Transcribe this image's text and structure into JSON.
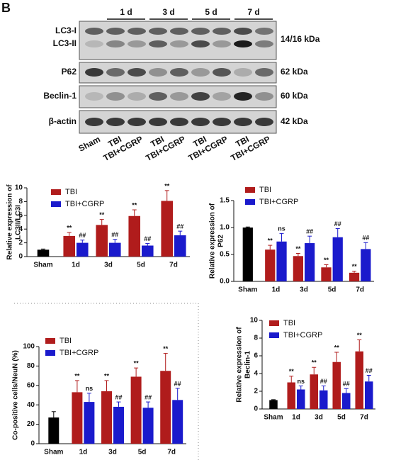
{
  "panel_label": "B",
  "blot": {
    "time_labels": [
      "1 d",
      "3 d",
      "5 d",
      "7 d"
    ],
    "row_labels": [
      "LC3-I",
      "LC3-II",
      "P62",
      "Beclin-1",
      "β-actin"
    ],
    "kda_labels": [
      "14/16 kDa",
      "62 kDa",
      "60 kDa",
      "42 kDa"
    ],
    "lanes": [
      "Sham",
      "TBI",
      "TBI+CGRP",
      "TBI",
      "TBI+CGRP",
      "TBI",
      "TBI+CGRP",
      "TBI",
      "TBI+CGRP"
    ]
  },
  "chart_data": [
    {
      "type": "bar",
      "ylabel": [
        "Relative expression of",
        "LC3II/LC3I"
      ],
      "categories": [
        "Sham",
        "1d",
        "3d",
        "5d",
        "7d"
      ],
      "control": {
        "value": 1,
        "error": 0.1,
        "color": "#000000"
      },
      "series": [
        {
          "name": "TBI",
          "color": "#b01c1c",
          "values": [
            null,
            3.0,
            4.6,
            5.9,
            8.1
          ],
          "errors": [
            null,
            0.5,
            0.8,
            0.9,
            1.5
          ],
          "annotations": [
            null,
            "**",
            "**",
            "**",
            "**"
          ]
        },
        {
          "name": "TBI+CGRP",
          "color": "#1a1acc",
          "values": [
            null,
            2.0,
            2.0,
            1.6,
            3.1
          ],
          "errors": [
            null,
            0.4,
            0.5,
            0.3,
            0.6
          ],
          "annotations": [
            null,
            "##",
            "##",
            "##",
            "##"
          ]
        }
      ],
      "ylim": [
        0,
        10
      ],
      "yticks": [
        0,
        2,
        4,
        6,
        8,
        10
      ]
    },
    {
      "type": "bar",
      "ylabel": [
        "Relative expression of",
        "P62"
      ],
      "categories": [
        "Sham",
        "1d",
        "3d",
        "5d",
        "7d"
      ],
      "control": {
        "value": 1.0,
        "error": 0.01,
        "color": "#000000"
      },
      "series": [
        {
          "name": "TBI",
          "color": "#b01c1c",
          "values": [
            null,
            0.59,
            0.47,
            0.26,
            0.16
          ],
          "errors": [
            null,
            0.08,
            0.05,
            0.05,
            0.03
          ],
          "annotations": [
            null,
            "**",
            "**",
            "**",
            "**"
          ]
        },
        {
          "name": "TBI+CGRP",
          "color": "#1a1acc",
          "values": [
            null,
            0.74,
            0.71,
            0.82,
            0.6
          ],
          "errors": [
            null,
            0.15,
            0.13,
            0.16,
            0.12
          ],
          "annotations": [
            null,
            "ns",
            "##",
            "##",
            "##"
          ]
        }
      ],
      "ylim": [
        0,
        1.5
      ],
      "yticks": [
        {
          "value": 0,
          "label": "0.0"
        },
        0.5,
        {
          "value": 1,
          "label": "1.0"
        },
        1.5
      ]
    },
    {
      "type": "bar",
      "ylabel": [
        "Co-positive cells/NeuN (%)"
      ],
      "categories": [
        "Sham",
        "1d",
        "3d",
        "5d",
        "7d"
      ],
      "control": {
        "value": 27,
        "error": 6,
        "color": "#000000"
      },
      "series": [
        {
          "name": "TBI",
          "color": "#b01c1c",
          "values": [
            null,
            53,
            54,
            69,
            75
          ],
          "errors": [
            null,
            12,
            11,
            9,
            18
          ],
          "annotations": [
            null,
            "**",
            "**",
            "**",
            "**"
          ]
        },
        {
          "name": "TBI+CGRP",
          "color": "#1a1acc",
          "values": [
            null,
            43,
            38,
            37,
            45
          ],
          "errors": [
            null,
            9,
            5,
            6,
            12
          ],
          "annotations": [
            null,
            "ns",
            "##",
            "##",
            "##"
          ]
        }
      ],
      "ylim": [
        0,
        100
      ],
      "yticks": [
        0,
        20,
        40,
        60,
        80,
        100
      ]
    },
    {
      "type": "bar",
      "ylabel": [
        "Relative expression of",
        "Beclin-1"
      ],
      "categories": [
        "Sham",
        "1d",
        "3d",
        "5d",
        "7d"
      ],
      "control": {
        "value": 1,
        "error": 0.05,
        "color": "#000000"
      },
      "series": [
        {
          "name": "TBI",
          "color": "#b01c1c",
          "values": [
            null,
            3.0,
            3.9,
            5.3,
            6.5
          ],
          "errors": [
            null,
            0.7,
            0.8,
            1.1,
            1.3
          ],
          "annotations": [
            null,
            "**",
            "**",
            "**",
            "**"
          ]
        },
        {
          "name": "TBI+CGRP",
          "color": "#1a1acc",
          "values": [
            null,
            2.2,
            2.1,
            1.8,
            3.1
          ],
          "errors": [
            null,
            0.4,
            0.5,
            0.5,
            0.7
          ],
          "annotations": [
            null,
            "ns",
            "##",
            "##",
            "##"
          ]
        }
      ],
      "ylim": [
        0,
        10
      ],
      "yticks": [
        0,
        2,
        4,
        6,
        8,
        10
      ]
    }
  ]
}
